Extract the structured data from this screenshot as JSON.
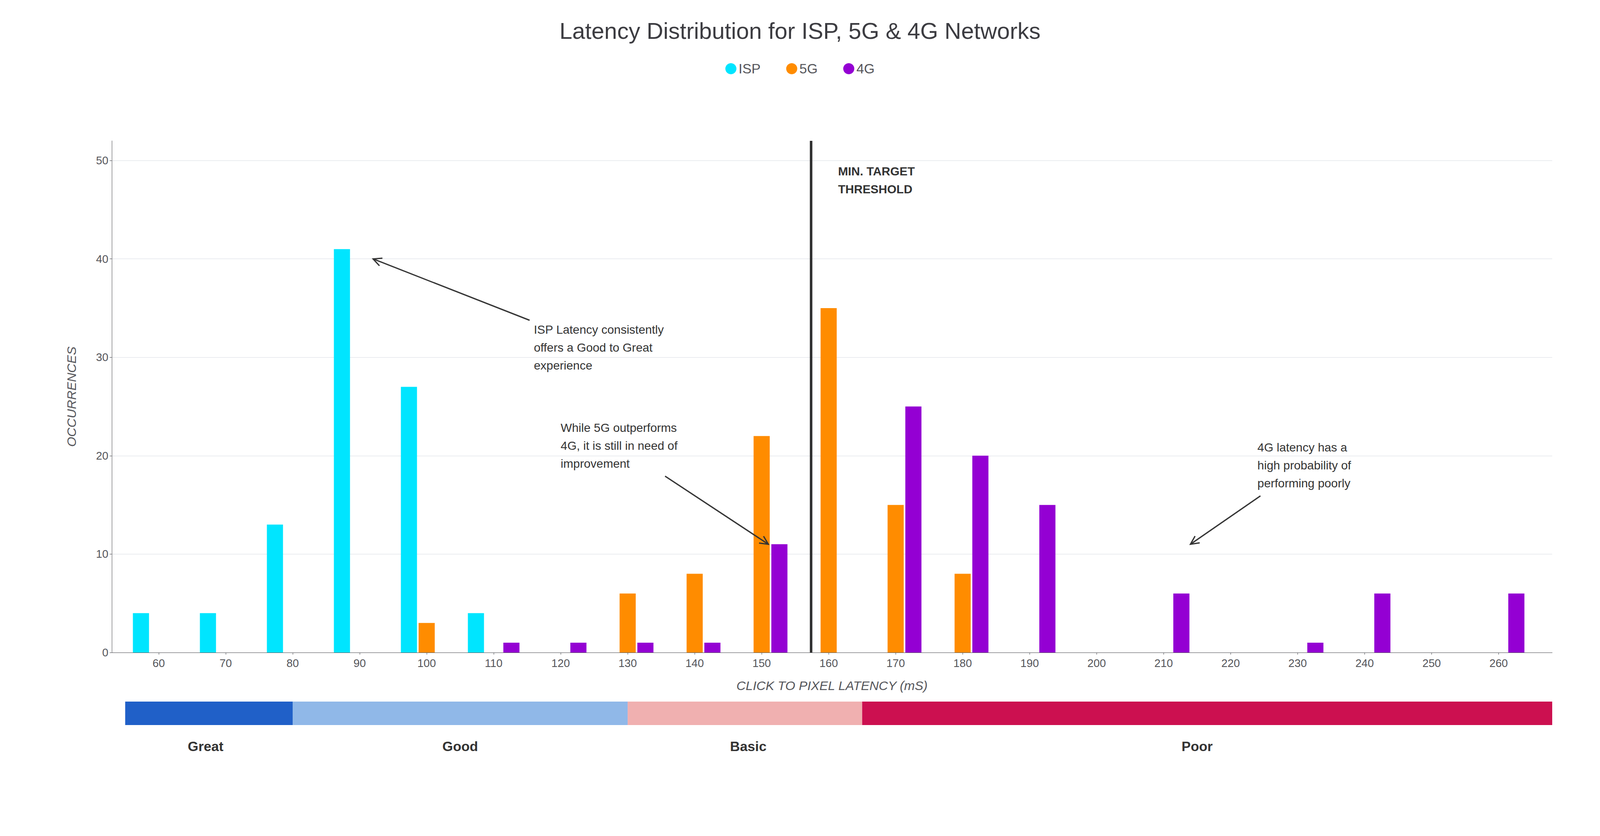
{
  "chart_data": {
    "type": "bar",
    "title": "Latency Distribution for ISP, 5G & 4G Networks",
    "x_label": "CLICK TO PIXEL LATENCY (mS)",
    "y_label": "OCCURRENCES",
    "x": [
      60,
      70,
      80,
      90,
      100,
      110,
      120,
      130,
      140,
      150,
      160,
      170,
      180,
      190,
      200,
      210,
      220,
      230,
      240,
      250,
      260
    ],
    "series": [
      {
        "name": "ISP",
        "color": "#00e5ff",
        "values": [
          4,
          4,
          13,
          41,
          27,
          4,
          0,
          0,
          0,
          0,
          0,
          0,
          0,
          0,
          0,
          0,
          0,
          0,
          0,
          0,
          0
        ]
      },
      {
        "name": "5G",
        "color": "#ff8c00",
        "values": [
          0,
          0,
          0,
          0,
          3,
          0,
          0,
          6,
          8,
          22,
          35,
          15,
          8,
          0,
          0,
          0,
          0,
          0,
          0,
          0,
          0
        ]
      },
      {
        "name": "4G",
        "color": "#9400d3",
        "values": [
          0,
          0,
          0,
          0,
          0,
          1,
          1,
          1,
          1,
          11,
          0,
          25,
          20,
          15,
          0,
          6,
          0,
          1,
          6,
          0,
          6
        ]
      }
    ],
    "xlim": [
      53,
      268
    ],
    "xticks": [
      60,
      70,
      80,
      90,
      100,
      110,
      120,
      130,
      140,
      150,
      160,
      170,
      180,
      190,
      200,
      210,
      220,
      230,
      240,
      250,
      260
    ],
    "ylim": [
      0,
      52
    ],
    "yticks": [
      0,
      10,
      20,
      30,
      40,
      50
    ],
    "grid": true,
    "legend": "top",
    "threshold": {
      "x": 160,
      "label": "MIN. TARGET\nTHRESHOLD"
    },
    "annotations": [
      {
        "text": "ISP Latency consistently\noffers a Good to Great\nexperience",
        "x": 92,
        "y": 40,
        "text_x": 116,
        "text_y": 31
      },
      {
        "text": "While 5G outperforms\n4G, it is still in need of\nimprovement",
        "x": 151,
        "y": 11,
        "text_x": 120,
        "text_y": 21
      },
      {
        "text": "4G latency has a\nhigh probability of\nperforming poorly",
        "x": 214,
        "y": 11,
        "text_x": 224,
        "text_y": 19
      }
    ],
    "quality_segments": [
      {
        "label": "Great",
        "color": "#2060C8",
        "xstart": 55,
        "xend": 80,
        "label_x": 67
      },
      {
        "label": "Good",
        "color": "#90B8E8",
        "xstart": 80,
        "xend": 130,
        "label_x": 105
      },
      {
        "label": "Basic",
        "color": "#F0B0B0",
        "xstart": 130,
        "xend": 165,
        "label_x": 148
      },
      {
        "label": "Poor",
        "color": "#CC1050",
        "xstart": 165,
        "xend": 270,
        "label_x": 215
      }
    ]
  }
}
